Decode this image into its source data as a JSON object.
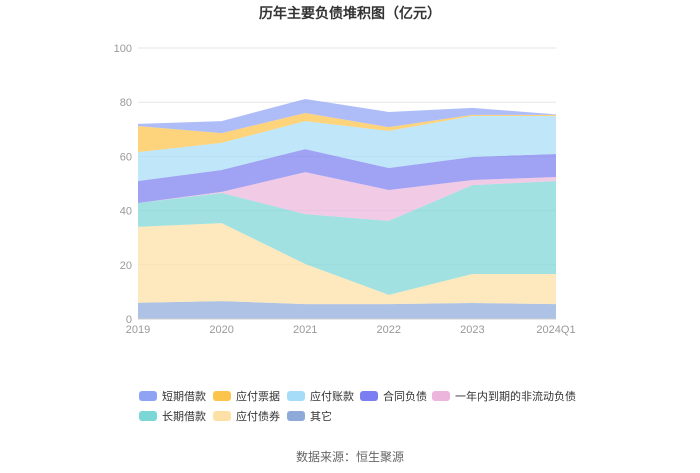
{
  "source": "数据来源：恒生聚源",
  "chart_data": {
    "type": "area",
    "stacked": true,
    "title": "历年主要负债堆积图（亿元）",
    "xlabel": "",
    "ylabel": "",
    "categories": [
      "2019",
      "2020",
      "2021",
      "2022",
      "2023",
      "2024Q1"
    ],
    "ylim": [
      0,
      100
    ],
    "yticks": [
      0,
      20,
      40,
      60,
      80,
      100
    ],
    "grid": true,
    "legend_position": "bottom",
    "series": [
      {
        "name": "短期借款",
        "color": "#8fa3f5",
        "values": [
          0.8,
          4.4,
          5.2,
          5.6,
          2.6,
          0.2
        ]
      },
      {
        "name": "应付票据",
        "color": "#fcc44a",
        "values": [
          9.6,
          3.6,
          3.0,
          1.4,
          0.4,
          0.4
        ]
      },
      {
        "name": "应付账款",
        "color": "#a6dcf7",
        "values": [
          10.7,
          10.0,
          10.3,
          13.7,
          15.1,
          14.0
        ]
      },
      {
        "name": "合同负债",
        "color": "#7b7ef0",
        "values": [
          8.1,
          8.1,
          8.5,
          8.1,
          8.5,
          8.5
        ]
      },
      {
        "name": "一年内到期的非流动负债",
        "color": "#ebb5dc",
        "values": [
          0.0,
          0.4,
          15.5,
          11.4,
          1.9,
          1.5
        ]
      },
      {
        "name": "长期借款",
        "color": "#7dd6d6",
        "values": [
          8.8,
          11.1,
          18.4,
          27.3,
          32.8,
          34.3
        ]
      },
      {
        "name": "应付债券",
        "color": "#fde0a6",
        "values": [
          28.0,
          28.8,
          14.8,
          3.4,
          10.7,
          11.1
        ]
      },
      {
        "name": "其它",
        "color": "#8eaad9",
        "values": [
          6.0,
          6.6,
          5.5,
          5.5,
          5.9,
          5.5
        ]
      }
    ]
  }
}
